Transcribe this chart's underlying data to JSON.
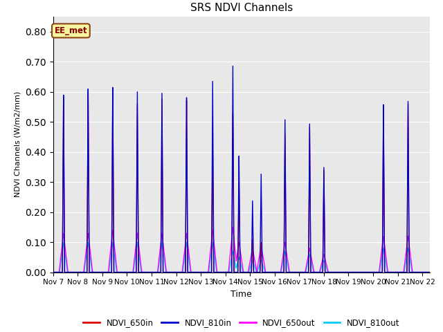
{
  "title": "SRS NDVI Channels",
  "xlabel": "Time",
  "ylabel": "NDVI Channels (W/m2/mm)",
  "ylim": [
    0.0,
    0.85
  ],
  "yticks": [
    0.0,
    0.1,
    0.2,
    0.3,
    0.4,
    0.5,
    0.6,
    0.7,
    0.8
  ],
  "bg_color": "#e8e8e8",
  "annotation_text": "EE_met",
  "annotation_color": "#8B0000",
  "annotation_bg": "#f5f5a0",
  "annotation_border": "#8B4513",
  "series_colors": {
    "NDVI_650in": "#dd0000",
    "NDVI_810in": "#0000cc",
    "NDVI_650out": "#ff00ff",
    "NDVI_810out": "#00ccff"
  },
  "x_tick_labels": [
    "Nov 7",
    "Nov 8",
    "Nov 9",
    "Nov 10",
    "Nov 11",
    "Nov 12",
    "Nov 13",
    "Nov 14",
    "Nov 15",
    "Nov 16",
    "Nov 17",
    "Nov 18",
    "Nov 19",
    "Nov 20",
    "Nov 21",
    "Nov 22"
  ],
  "figsize": [
    6.4,
    4.8
  ],
  "dpi": 100
}
